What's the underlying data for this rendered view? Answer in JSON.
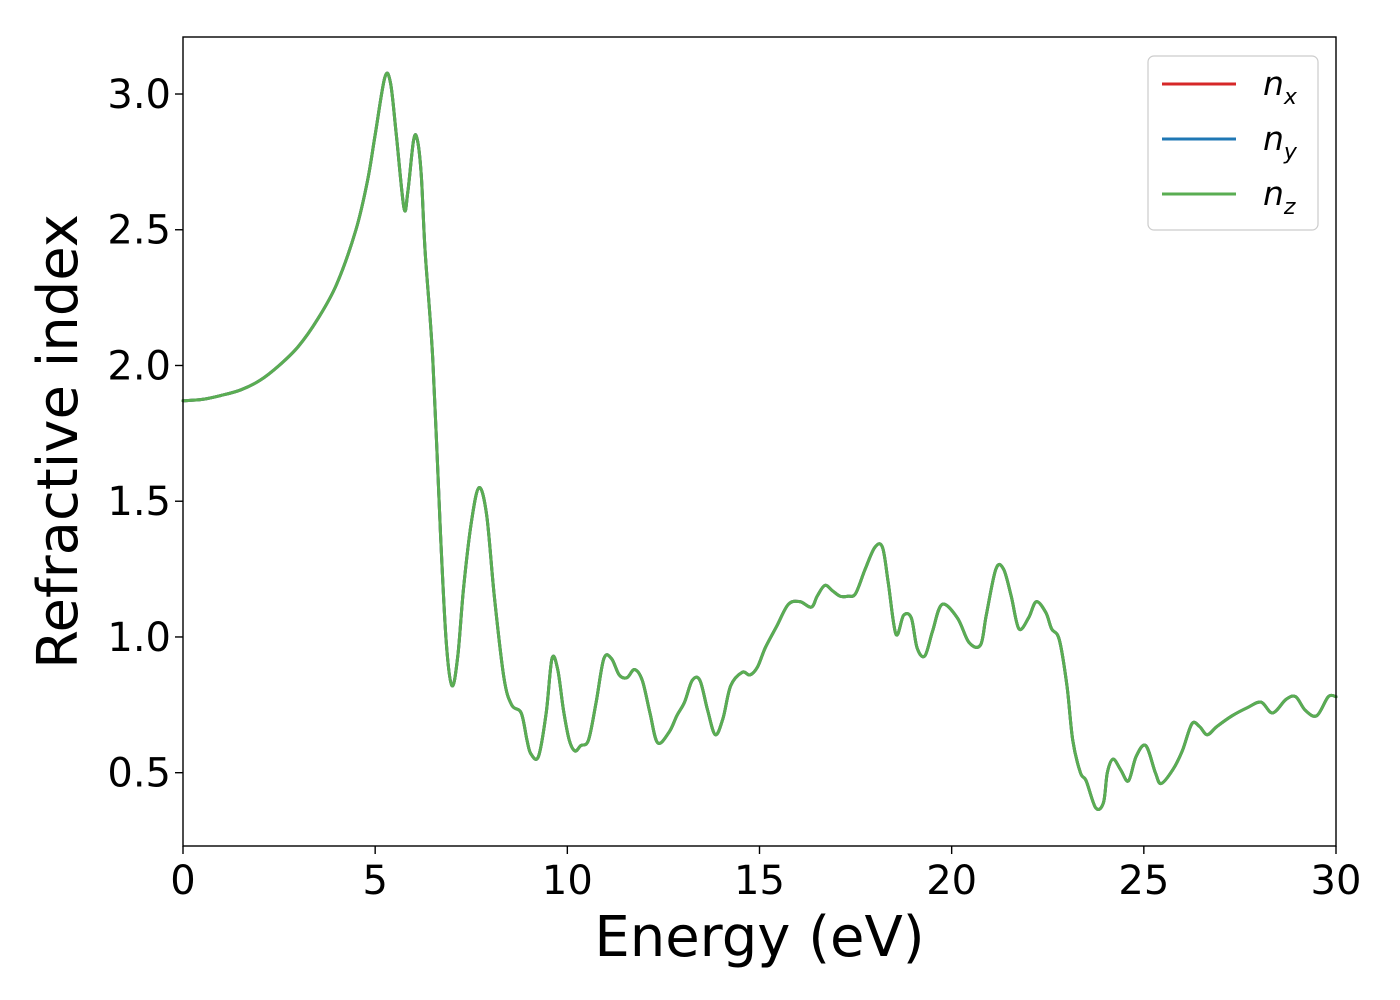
{
  "chart_data": {
    "type": "line",
    "xlabel": "Energy (eV)",
    "ylabel": "Refractive index",
    "xlim": [
      0,
      30
    ],
    "ylim": [
      0.23,
      3.21
    ],
    "xticks": [
      0,
      5,
      10,
      15,
      20,
      25,
      30
    ],
    "xtick_labels": [
      "0",
      "5",
      "10",
      "15",
      "20",
      "25",
      "30"
    ],
    "yticks": [
      0.5,
      1.0,
      1.5,
      2.0,
      2.5,
      3.0
    ],
    "ytick_labels": [
      "0.5",
      "1.0",
      "1.5",
      "2.0",
      "2.5",
      "3.0"
    ],
    "grid": false,
    "legend_position": "top-right",
    "series": [
      {
        "name": "n_x",
        "label_main": "n",
        "label_sub": "x",
        "color": "#d62728",
        "x": [
          0,
          0.5,
          1,
          1.5,
          2,
          2.5,
          3,
          3.5,
          4,
          4.5,
          4.8,
          5.0,
          5.25,
          5.4,
          5.55,
          5.75,
          5.85,
          6.0,
          6.1,
          6.2,
          6.3,
          6.5,
          6.7,
          6.85,
          7.0,
          7.15,
          7.3,
          7.5,
          7.7,
          7.9,
          8.1,
          8.35,
          8.55,
          8.8,
          8.95,
          9.05,
          9.25,
          9.45,
          9.6,
          9.75,
          9.9,
          10.05,
          10.2,
          10.35,
          10.55,
          10.75,
          10.95,
          11.15,
          11.35,
          11.55,
          11.75,
          11.95,
          12.15,
          12.35,
          12.65,
          12.85,
          13.05,
          13.25,
          13.45,
          13.65,
          13.85,
          14.05,
          14.25,
          14.55,
          14.75,
          14.95,
          15.15,
          15.45,
          15.75,
          16.05,
          16.35,
          16.5,
          16.7,
          16.9,
          17.1,
          17.3,
          17.5,
          17.75,
          18.0,
          18.2,
          18.35,
          18.55,
          18.75,
          18.95,
          19.1,
          19.3,
          19.5,
          19.75,
          20.15,
          20.45,
          20.75,
          20.9,
          21.15,
          21.35,
          21.55,
          21.75,
          22.0,
          22.2,
          22.45,
          22.6,
          22.8,
          23.0,
          23.15,
          23.35,
          23.5,
          23.75,
          23.95,
          24.05,
          24.2,
          24.4,
          24.6,
          24.8,
          25.05,
          25.3,
          25.45,
          25.75,
          26.0,
          26.25,
          26.45,
          26.65,
          26.9,
          27.3,
          27.7,
          28.05,
          28.35,
          28.7,
          28.95,
          29.2,
          29.5,
          29.8,
          30.0
        ],
        "y": [
          1.87,
          1.875,
          1.89,
          1.91,
          1.945,
          2.0,
          2.07,
          2.17,
          2.3,
          2.5,
          2.68,
          2.85,
          3.06,
          3.04,
          2.85,
          2.58,
          2.64,
          2.83,
          2.83,
          2.7,
          2.42,
          2.02,
          1.38,
          0.98,
          0.82,
          0.93,
          1.18,
          1.42,
          1.55,
          1.45,
          1.15,
          0.85,
          0.75,
          0.72,
          0.62,
          0.57,
          0.56,
          0.72,
          0.92,
          0.88,
          0.73,
          0.62,
          0.58,
          0.6,
          0.62,
          0.76,
          0.92,
          0.92,
          0.86,
          0.85,
          0.88,
          0.84,
          0.72,
          0.61,
          0.65,
          0.71,
          0.76,
          0.84,
          0.84,
          0.73,
          0.64,
          0.7,
          0.82,
          0.87,
          0.86,
          0.89,
          0.96,
          1.04,
          1.12,
          1.13,
          1.11,
          1.15,
          1.19,
          1.17,
          1.15,
          1.15,
          1.16,
          1.25,
          1.33,
          1.33,
          1.2,
          1.01,
          1.08,
          1.07,
          0.96,
          0.93,
          1.02,
          1.12,
          1.07,
          0.98,
          0.97,
          1.08,
          1.25,
          1.25,
          1.15,
          1.03,
          1.07,
          1.13,
          1.09,
          1.03,
          0.99,
          0.82,
          0.62,
          0.5,
          0.47,
          0.37,
          0.39,
          0.5,
          0.55,
          0.51,
          0.47,
          0.56,
          0.6,
          0.5,
          0.46,
          0.51,
          0.58,
          0.68,
          0.67,
          0.64,
          0.67,
          0.71,
          0.74,
          0.76,
          0.72,
          0.77,
          0.78,
          0.73,
          0.71,
          0.78,
          0.78
        ]
      },
      {
        "name": "n_y",
        "label_main": "n",
        "label_sub": "y",
        "color": "#1f77b4",
        "x": [
          0,
          0.5,
          1,
          1.5,
          2,
          2.5,
          3,
          3.5,
          4,
          4.5,
          4.8,
          5.0,
          5.25,
          5.4,
          5.55,
          5.75,
          5.85,
          6.0,
          6.1,
          6.2,
          6.3,
          6.5,
          6.7,
          6.85,
          7.0,
          7.15,
          7.3,
          7.5,
          7.7,
          7.9,
          8.1,
          8.35,
          8.55,
          8.8,
          8.95,
          9.05,
          9.25,
          9.45,
          9.6,
          9.75,
          9.9,
          10.05,
          10.2,
          10.35,
          10.55,
          10.75,
          10.95,
          11.15,
          11.35,
          11.55,
          11.75,
          11.95,
          12.15,
          12.35,
          12.65,
          12.85,
          13.05,
          13.25,
          13.45,
          13.65,
          13.85,
          14.05,
          14.25,
          14.55,
          14.75,
          14.95,
          15.15,
          15.45,
          15.75,
          16.05,
          16.35,
          16.5,
          16.7,
          16.9,
          17.1,
          17.3,
          17.5,
          17.75,
          18.0,
          18.2,
          18.35,
          18.55,
          18.75,
          18.95,
          19.1,
          19.3,
          19.5,
          19.75,
          20.15,
          20.45,
          20.75,
          20.9,
          21.15,
          21.35,
          21.55,
          21.75,
          22.0,
          22.2,
          22.45,
          22.6,
          22.8,
          23.0,
          23.15,
          23.35,
          23.5,
          23.75,
          23.95,
          24.05,
          24.2,
          24.4,
          24.6,
          24.8,
          25.05,
          25.3,
          25.45,
          25.75,
          26.0,
          26.25,
          26.45,
          26.65,
          26.9,
          27.3,
          27.7,
          28.05,
          28.35,
          28.7,
          28.95,
          29.2,
          29.5,
          29.8,
          30.0
        ],
        "y": [
          1.87,
          1.875,
          1.89,
          1.91,
          1.945,
          2.0,
          2.07,
          2.17,
          2.3,
          2.5,
          2.68,
          2.85,
          3.06,
          3.04,
          2.85,
          2.58,
          2.64,
          2.83,
          2.83,
          2.7,
          2.42,
          2.02,
          1.38,
          0.98,
          0.82,
          0.93,
          1.18,
          1.42,
          1.55,
          1.45,
          1.15,
          0.85,
          0.75,
          0.72,
          0.62,
          0.57,
          0.56,
          0.72,
          0.92,
          0.88,
          0.73,
          0.62,
          0.58,
          0.6,
          0.62,
          0.76,
          0.92,
          0.92,
          0.86,
          0.85,
          0.88,
          0.84,
          0.72,
          0.61,
          0.65,
          0.71,
          0.76,
          0.84,
          0.84,
          0.73,
          0.64,
          0.7,
          0.82,
          0.87,
          0.86,
          0.89,
          0.96,
          1.04,
          1.12,
          1.13,
          1.11,
          1.15,
          1.19,
          1.17,
          1.15,
          1.15,
          1.16,
          1.25,
          1.33,
          1.33,
          1.2,
          1.01,
          1.08,
          1.07,
          0.96,
          0.93,
          1.02,
          1.12,
          1.07,
          0.98,
          0.97,
          1.08,
          1.25,
          1.25,
          1.15,
          1.03,
          1.07,
          1.13,
          1.09,
          1.03,
          0.99,
          0.82,
          0.62,
          0.5,
          0.47,
          0.37,
          0.39,
          0.5,
          0.55,
          0.51,
          0.47,
          0.56,
          0.6,
          0.5,
          0.46,
          0.51,
          0.58,
          0.68,
          0.67,
          0.64,
          0.67,
          0.71,
          0.74,
          0.76,
          0.72,
          0.77,
          0.78,
          0.73,
          0.71,
          0.78,
          0.78
        ]
      },
      {
        "name": "n_z",
        "label_main": "n",
        "label_sub": "z",
        "color": "#5aad52",
        "x": [
          0,
          0.5,
          1,
          1.5,
          2,
          2.5,
          3,
          3.5,
          4,
          4.5,
          4.8,
          5.0,
          5.25,
          5.4,
          5.55,
          5.75,
          5.85,
          6.0,
          6.1,
          6.2,
          6.3,
          6.5,
          6.7,
          6.85,
          7.0,
          7.15,
          7.3,
          7.5,
          7.7,
          7.9,
          8.1,
          8.35,
          8.55,
          8.8,
          8.95,
          9.05,
          9.25,
          9.45,
          9.6,
          9.75,
          9.9,
          10.05,
          10.2,
          10.35,
          10.55,
          10.75,
          10.95,
          11.15,
          11.35,
          11.55,
          11.75,
          11.95,
          12.15,
          12.35,
          12.65,
          12.85,
          13.05,
          13.25,
          13.45,
          13.65,
          13.85,
          14.05,
          14.25,
          14.55,
          14.75,
          14.95,
          15.15,
          15.45,
          15.75,
          16.05,
          16.35,
          16.5,
          16.7,
          16.9,
          17.1,
          17.3,
          17.5,
          17.75,
          18.0,
          18.2,
          18.35,
          18.55,
          18.75,
          18.95,
          19.1,
          19.3,
          19.5,
          19.75,
          20.15,
          20.45,
          20.75,
          20.9,
          21.15,
          21.35,
          21.55,
          21.75,
          22.0,
          22.2,
          22.45,
          22.6,
          22.8,
          23.0,
          23.15,
          23.35,
          23.5,
          23.75,
          23.95,
          24.05,
          24.2,
          24.4,
          24.6,
          24.8,
          25.05,
          25.3,
          25.45,
          25.75,
          26.0,
          26.25,
          26.45,
          26.65,
          26.9,
          27.3,
          27.7,
          28.05,
          28.35,
          28.7,
          28.95,
          29.2,
          29.5,
          29.8,
          30.0
        ],
        "y": [
          1.87,
          1.875,
          1.89,
          1.91,
          1.945,
          2.0,
          2.07,
          2.17,
          2.3,
          2.5,
          2.68,
          2.85,
          3.06,
          3.04,
          2.85,
          2.58,
          2.64,
          2.83,
          2.83,
          2.7,
          2.42,
          2.02,
          1.38,
          0.98,
          0.82,
          0.93,
          1.18,
          1.42,
          1.55,
          1.45,
          1.15,
          0.85,
          0.75,
          0.72,
          0.62,
          0.57,
          0.56,
          0.72,
          0.92,
          0.88,
          0.73,
          0.62,
          0.58,
          0.6,
          0.62,
          0.76,
          0.92,
          0.92,
          0.86,
          0.85,
          0.88,
          0.84,
          0.72,
          0.61,
          0.65,
          0.71,
          0.76,
          0.84,
          0.84,
          0.73,
          0.64,
          0.7,
          0.82,
          0.87,
          0.86,
          0.89,
          0.96,
          1.04,
          1.12,
          1.13,
          1.11,
          1.15,
          1.19,
          1.17,
          1.15,
          1.15,
          1.16,
          1.25,
          1.33,
          1.33,
          1.2,
          1.01,
          1.08,
          1.07,
          0.96,
          0.93,
          1.02,
          1.12,
          1.07,
          0.98,
          0.97,
          1.08,
          1.25,
          1.25,
          1.15,
          1.03,
          1.07,
          1.13,
          1.09,
          1.03,
          0.99,
          0.82,
          0.62,
          0.5,
          0.47,
          0.37,
          0.39,
          0.5,
          0.55,
          0.51,
          0.47,
          0.56,
          0.6,
          0.5,
          0.46,
          0.51,
          0.58,
          0.68,
          0.67,
          0.64,
          0.67,
          0.71,
          0.74,
          0.76,
          0.72,
          0.77,
          0.78,
          0.73,
          0.71,
          0.78,
          0.78
        ]
      }
    ]
  }
}
